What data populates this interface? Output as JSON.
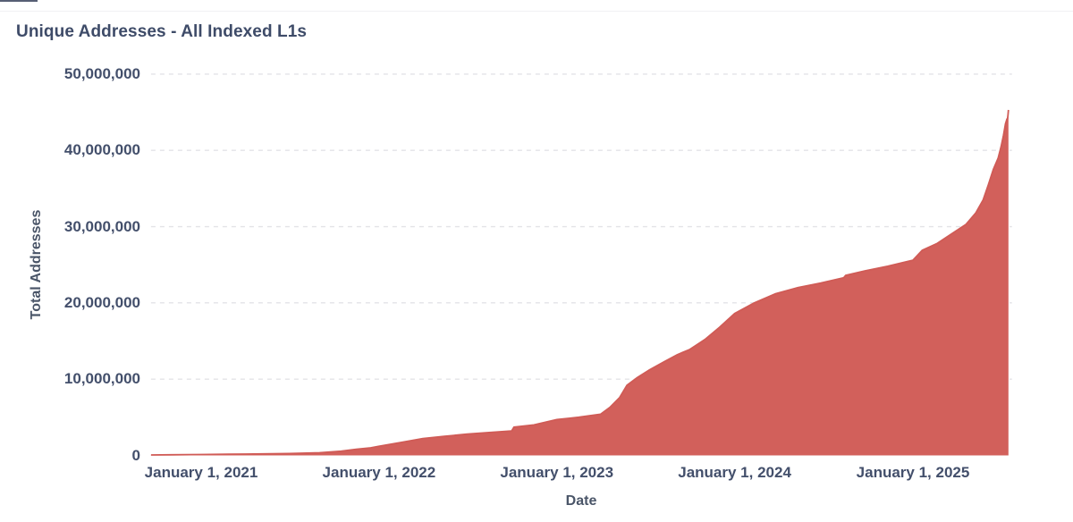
{
  "page": {
    "background": "#ffffff"
  },
  "header": {
    "title": "Unique Addresses - All Indexed L1s"
  },
  "chart_data": {
    "type": "area",
    "title": "Unique Addresses - All Indexed L1s",
    "xlabel": "Date",
    "ylabel": "Total Addresses",
    "ylim": [
      0,
      50000000
    ],
    "grid": "horizontal-dashed",
    "legend": "none",
    "colors": {
      "area_fill": "#d2605b",
      "area_stroke": "#d05b56",
      "text": "#434f6b",
      "gridline": "#e3e3e7"
    },
    "y_ticks": [
      {
        "value": 50000000,
        "label": "50,000,000"
      },
      {
        "value": 40000000,
        "label": "40,000,000"
      },
      {
        "value": 30000000,
        "label": "30,000,000"
      },
      {
        "value": 20000000,
        "label": "20,000,000"
      },
      {
        "value": 10000000,
        "label": "10,000,000"
      },
      {
        "value": 0,
        "label": "0"
      }
    ],
    "x_ticks": [
      {
        "date": "2021-01-01",
        "label": "January 1, 2021"
      },
      {
        "date": "2022-01-01",
        "label": "January 1, 2022"
      },
      {
        "date": "2023-01-01",
        "label": "January 1, 2023"
      },
      {
        "date": "2024-01-01",
        "label": "January 1, 2024"
      },
      {
        "date": "2025-01-01",
        "label": "January 1, 2025"
      }
    ],
    "series": [
      {
        "name": "Total Addresses",
        "points": [
          [
            "2020-09-20",
            60000
          ],
          [
            "2020-11-01",
            80000
          ],
          [
            "2021-01-01",
            120000
          ],
          [
            "2021-04-01",
            180000
          ],
          [
            "2021-07-01",
            250000
          ],
          [
            "2021-09-01",
            350000
          ],
          [
            "2021-10-15",
            550000
          ],
          [
            "2021-11-15",
            800000
          ],
          [
            "2021-12-15",
            1000000
          ],
          [
            "2022-01-01",
            1200000
          ],
          [
            "2022-02-15",
            1700000
          ],
          [
            "2022-04-01",
            2200000
          ],
          [
            "2022-05-15",
            2500000
          ],
          [
            "2022-07-01",
            2800000
          ],
          [
            "2022-08-15",
            3000000
          ],
          [
            "2022-09-30",
            3200000
          ],
          [
            "2022-10-05",
            3700000
          ],
          [
            "2022-11-15",
            4000000
          ],
          [
            "2023-01-01",
            4700000
          ],
          [
            "2023-02-15",
            5000000
          ],
          [
            "2023-04-01",
            5400000
          ],
          [
            "2023-04-20",
            6300000
          ],
          [
            "2023-05-10",
            7600000
          ],
          [
            "2023-05-25",
            9200000
          ],
          [
            "2023-06-15",
            10200000
          ],
          [
            "2023-07-10",
            11200000
          ],
          [
            "2023-08-10",
            12300000
          ],
          [
            "2023-09-05",
            13200000
          ],
          [
            "2023-10-01",
            13900000
          ],
          [
            "2023-11-01",
            15200000
          ],
          [
            "2023-12-01",
            16800000
          ],
          [
            "2024-01-01",
            18600000
          ],
          [
            "2024-02-10",
            20000000
          ],
          [
            "2024-03-25",
            21200000
          ],
          [
            "2024-05-10",
            22000000
          ],
          [
            "2024-06-25",
            22600000
          ],
          [
            "2024-08-12",
            23300000
          ],
          [
            "2024-08-16",
            23600000
          ],
          [
            "2024-09-25",
            24200000
          ],
          [
            "2024-11-10",
            24800000
          ],
          [
            "2025-01-01",
            25600000
          ],
          [
            "2025-01-20",
            26900000
          ],
          [
            "2025-02-20",
            27800000
          ],
          [
            "2025-03-20",
            29000000
          ],
          [
            "2025-04-20",
            30300000
          ],
          [
            "2025-05-10",
            31800000
          ],
          [
            "2025-05-25",
            33500000
          ],
          [
            "2025-06-05",
            35500000
          ],
          [
            "2025-06-15",
            37500000
          ],
          [
            "2025-06-25",
            39000000
          ],
          [
            "2025-07-01",
            40500000
          ],
          [
            "2025-07-06",
            42000000
          ],
          [
            "2025-07-10",
            43500000
          ],
          [
            "2025-07-12",
            43900000
          ],
          [
            "2025-07-13",
            43700000
          ],
          [
            "2025-07-15",
            44500000
          ],
          [
            "2025-07-16",
            45300000
          ]
        ]
      }
    ]
  }
}
